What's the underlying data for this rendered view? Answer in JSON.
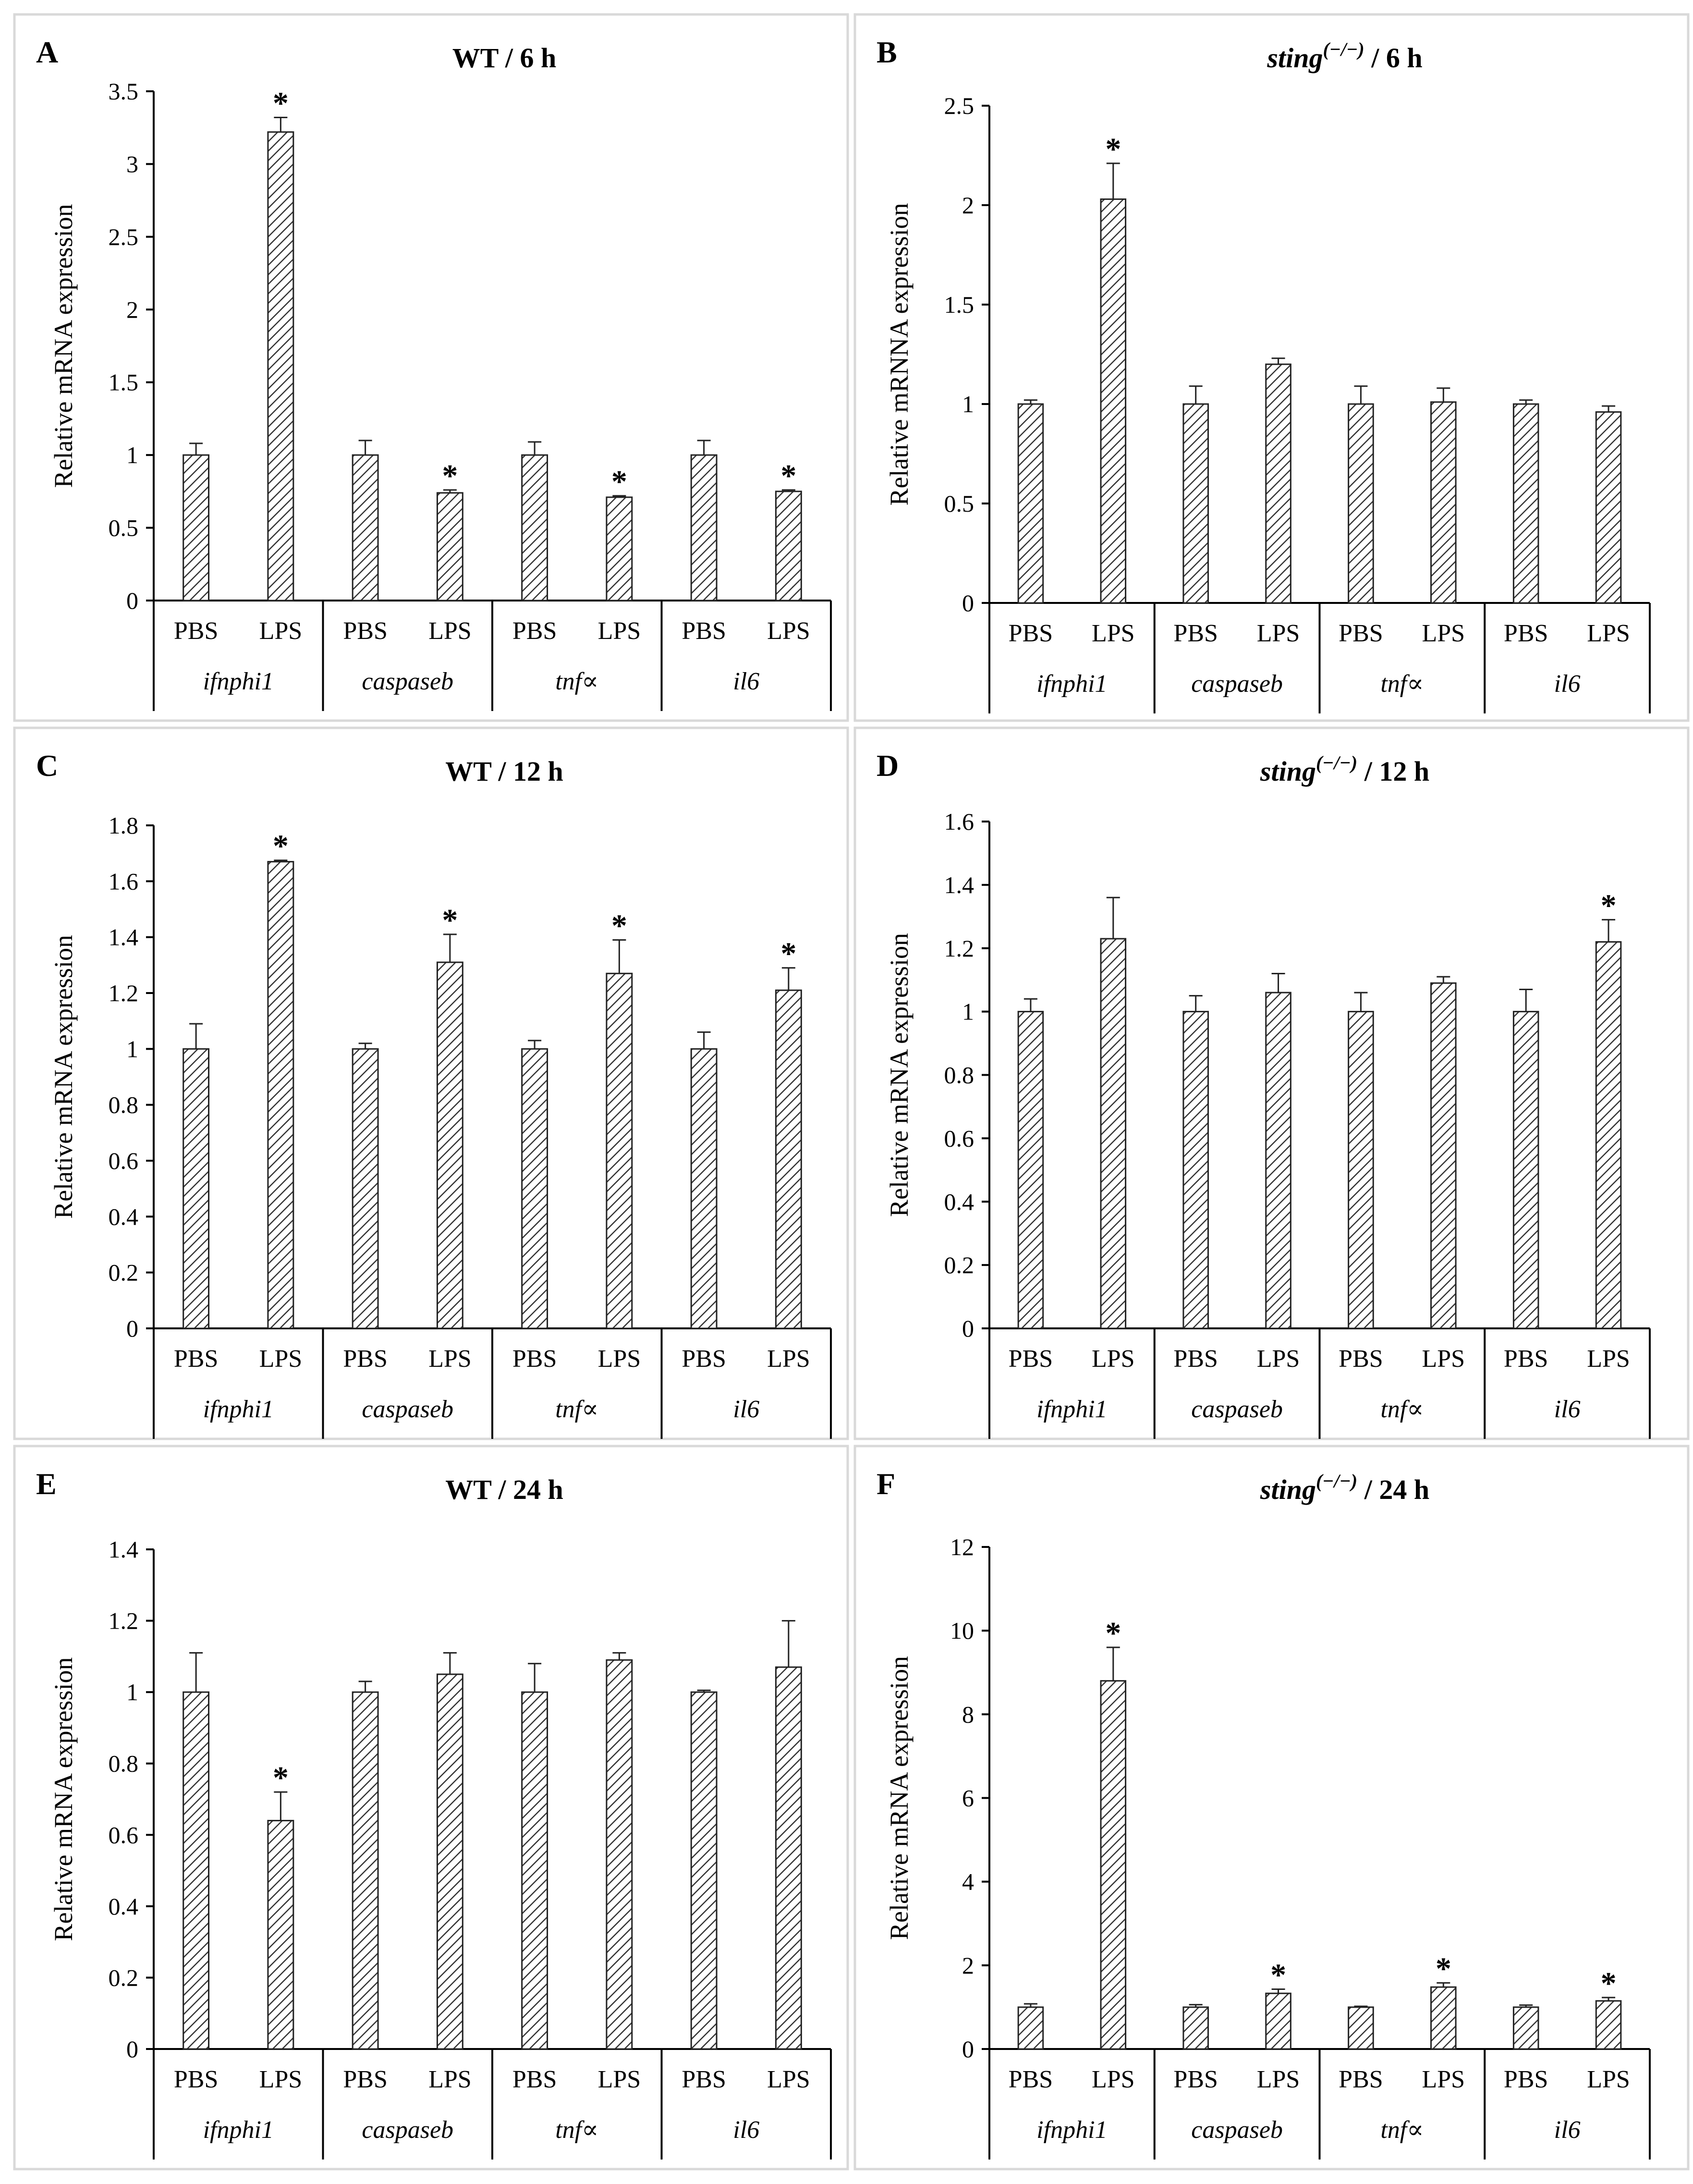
{
  "chart_data": [
    {
      "panel": "A",
      "type": "bar",
      "title": "WT / 6 h",
      "title_parts": {
        "genotype": "WT",
        "genotype_italic": false,
        "superscript": "",
        "time": "/ 6 h"
      },
      "ylabel": "Relative mRNA expression",
      "ylim": [
        0,
        3.5
      ],
      "yticks": [
        "0",
        "0.5",
        "1",
        "1.5",
        "2",
        "2.5",
        "3",
        "3.5"
      ],
      "groups": [
        "ifnphi1",
        "caspaseb",
        "tnf∝",
        "il6"
      ],
      "treatments": [
        "PBS",
        "LPS"
      ],
      "bars": [
        {
          "group": "ifnphi1",
          "treatment": "PBS",
          "value": 1.0,
          "error": 0.08,
          "significant": false
        },
        {
          "group": "ifnphi1",
          "treatment": "LPS",
          "value": 3.22,
          "error": 0.1,
          "significant": true
        },
        {
          "group": "caspaseb",
          "treatment": "PBS",
          "value": 1.0,
          "error": 0.1,
          "significant": false
        },
        {
          "group": "caspaseb",
          "treatment": "LPS",
          "value": 0.74,
          "error": 0.02,
          "significant": true
        },
        {
          "group": "tnf∝",
          "treatment": "PBS",
          "value": 1.0,
          "error": 0.09,
          "significant": false
        },
        {
          "group": "tnf∝",
          "treatment": "LPS",
          "value": 0.71,
          "error": 0.01,
          "significant": true
        },
        {
          "group": "il6",
          "treatment": "PBS",
          "value": 1.0,
          "error": 0.1,
          "significant": false
        },
        {
          "group": "il6",
          "treatment": "LPS",
          "value": 0.75,
          "error": 0.01,
          "significant": true
        }
      ]
    },
    {
      "panel": "B",
      "type": "bar",
      "title": "sting(−/−) / 6 h",
      "title_parts": {
        "genotype": "sting",
        "genotype_italic": true,
        "superscript": "(−/−)",
        "time": "/ 6 h"
      },
      "ylabel": "Relative mRNNA expression",
      "ylim": [
        0,
        2.5
      ],
      "yticks": [
        "0",
        "0.5",
        "1",
        "1.5",
        "2",
        "2.5"
      ],
      "groups": [
        "ifnphi1",
        "caspaseb",
        "tnf∝",
        "il6"
      ],
      "treatments": [
        "PBS",
        "LPS"
      ],
      "bars": [
        {
          "group": "ifnphi1",
          "treatment": "PBS",
          "value": 1.0,
          "error": 0.02,
          "significant": false
        },
        {
          "group": "ifnphi1",
          "treatment": "LPS",
          "value": 2.03,
          "error": 0.18,
          "significant": true
        },
        {
          "group": "caspaseb",
          "treatment": "PBS",
          "value": 1.0,
          "error": 0.09,
          "significant": false
        },
        {
          "group": "caspaseb",
          "treatment": "LPS",
          "value": 1.2,
          "error": 0.03,
          "significant": false
        },
        {
          "group": "tnf∝",
          "treatment": "PBS",
          "value": 1.0,
          "error": 0.09,
          "significant": false
        },
        {
          "group": "tnf∝",
          "treatment": "LPS",
          "value": 1.01,
          "error": 0.07,
          "significant": false
        },
        {
          "group": "il6",
          "treatment": "PBS",
          "value": 1.0,
          "error": 0.02,
          "significant": false
        },
        {
          "group": "il6",
          "treatment": "LPS",
          "value": 0.96,
          "error": 0.03,
          "significant": false
        }
      ]
    },
    {
      "panel": "C",
      "type": "bar",
      "title": "WT / 12 h",
      "title_parts": {
        "genotype": "WT",
        "genotype_italic": false,
        "superscript": "",
        "time": "/ 12 h"
      },
      "ylabel": "Relative mRNA expression",
      "ylim": [
        0,
        1.8
      ],
      "yticks": [
        "0",
        "0.2",
        "0.4",
        "0.6",
        "0.8",
        "1",
        "1.2",
        "1.4",
        "1.6",
        "1.8"
      ],
      "groups": [
        "ifnphi1",
        "caspaseb",
        "tnf∝",
        "il6"
      ],
      "treatments": [
        "PBS",
        "LPS"
      ],
      "bars": [
        {
          "group": "ifnphi1",
          "treatment": "PBS",
          "value": 1.0,
          "error": 0.09,
          "significant": false
        },
        {
          "group": "ifnphi1",
          "treatment": "LPS",
          "value": 1.67,
          "error": 0.005,
          "significant": true
        },
        {
          "group": "caspaseb",
          "treatment": "PBS",
          "value": 1.0,
          "error": 0.02,
          "significant": false
        },
        {
          "group": "caspaseb",
          "treatment": "LPS",
          "value": 1.31,
          "error": 0.1,
          "significant": true
        },
        {
          "group": "tnf∝",
          "treatment": "PBS",
          "value": 1.0,
          "error": 0.03,
          "significant": false
        },
        {
          "group": "tnf∝",
          "treatment": "LPS",
          "value": 1.27,
          "error": 0.12,
          "significant": true
        },
        {
          "group": "il6",
          "treatment": "PBS",
          "value": 1.0,
          "error": 0.06,
          "significant": false
        },
        {
          "group": "il6",
          "treatment": "LPS",
          "value": 1.21,
          "error": 0.08,
          "significant": true
        }
      ]
    },
    {
      "panel": "D",
      "type": "bar",
      "title": "sting(−/−) / 12 h",
      "title_parts": {
        "genotype": "sting",
        "genotype_italic": true,
        "superscript": "(−/−)",
        "time": "/ 12 h"
      },
      "ylabel": "Relative mRNA expression",
      "ylim": [
        0,
        1.6
      ],
      "yticks": [
        "0",
        "0.2",
        "0.4",
        "0.6",
        "0.8",
        "1",
        "1.2",
        "1.4",
        "1.6"
      ],
      "groups": [
        "ifnphi1",
        "caspaseb",
        "tnf∝",
        "il6"
      ],
      "treatments": [
        "PBS",
        "LPS"
      ],
      "bars": [
        {
          "group": "ifnphi1",
          "treatment": "PBS",
          "value": 1.0,
          "error": 0.04,
          "significant": false
        },
        {
          "group": "ifnphi1",
          "treatment": "LPS",
          "value": 1.23,
          "error": 0.13,
          "significant": false
        },
        {
          "group": "caspaseb",
          "treatment": "PBS",
          "value": 1.0,
          "error": 0.05,
          "significant": false
        },
        {
          "group": "caspaseb",
          "treatment": "LPS",
          "value": 1.06,
          "error": 0.06,
          "significant": false
        },
        {
          "group": "tnf∝",
          "treatment": "PBS",
          "value": 1.0,
          "error": 0.06,
          "significant": false
        },
        {
          "group": "tnf∝",
          "treatment": "LPS",
          "value": 1.09,
          "error": 0.02,
          "significant": false
        },
        {
          "group": "il6",
          "treatment": "PBS",
          "value": 1.0,
          "error": 0.07,
          "significant": false
        },
        {
          "group": "il6",
          "treatment": "LPS",
          "value": 1.22,
          "error": 0.07,
          "significant": true
        }
      ]
    },
    {
      "panel": "E",
      "type": "bar",
      "title": "WT / 24 h",
      "title_parts": {
        "genotype": "WT",
        "genotype_italic": false,
        "superscript": "",
        "time": "/ 24 h"
      },
      "ylabel": "Relative mRNA expression",
      "ylim": [
        0,
        1.4
      ],
      "yticks": [
        "0",
        "0.2",
        "0.4",
        "0.6",
        "0.8",
        "1",
        "1.2",
        "1.4"
      ],
      "groups": [
        "ifnphi1",
        "caspaseb",
        "tnf∝",
        "il6"
      ],
      "treatments": [
        "PBS",
        "LPS"
      ],
      "bars": [
        {
          "group": "ifnphi1",
          "treatment": "PBS",
          "value": 1.0,
          "error": 0.11,
          "significant": false
        },
        {
          "group": "ifnphi1",
          "treatment": "LPS",
          "value": 0.64,
          "error": 0.08,
          "significant": true
        },
        {
          "group": "caspaseb",
          "treatment": "PBS",
          "value": 1.0,
          "error": 0.03,
          "significant": false
        },
        {
          "group": "caspaseb",
          "treatment": "LPS",
          "value": 1.05,
          "error": 0.06,
          "significant": false
        },
        {
          "group": "tnf∝",
          "treatment": "PBS",
          "value": 1.0,
          "error": 0.08,
          "significant": false
        },
        {
          "group": "tnf∝",
          "treatment": "LPS",
          "value": 1.09,
          "error": 0.02,
          "significant": false
        },
        {
          "group": "il6",
          "treatment": "PBS",
          "value": 1.0,
          "error": 0.005,
          "significant": false
        },
        {
          "group": "il6",
          "treatment": "LPS",
          "value": 1.07,
          "error": 0.13,
          "significant": false
        }
      ]
    },
    {
      "panel": "F",
      "type": "bar",
      "title": "sting(−/−) / 24 h",
      "title_parts": {
        "genotype": "sting",
        "genotype_italic": true,
        "superscript": "(−/−)",
        "time": "/ 24 h"
      },
      "ylabel": "Relative mRNA expression",
      "ylim": [
        0,
        12
      ],
      "yticks": [
        "0",
        "2",
        "4",
        "6",
        "8",
        "10",
        "12"
      ],
      "groups": [
        "ifnphi1",
        "caspaseb",
        "tnf∝",
        "il6"
      ],
      "treatments": [
        "PBS",
        "LPS"
      ],
      "bars": [
        {
          "group": "ifnphi1",
          "treatment": "PBS",
          "value": 1.0,
          "error": 0.08,
          "significant": false
        },
        {
          "group": "ifnphi1",
          "treatment": "LPS",
          "value": 8.8,
          "error": 0.8,
          "significant": true
        },
        {
          "group": "caspaseb",
          "treatment": "PBS",
          "value": 1.0,
          "error": 0.06,
          "significant": false
        },
        {
          "group": "caspaseb",
          "treatment": "LPS",
          "value": 1.33,
          "error": 0.1,
          "significant": true
        },
        {
          "group": "tnf∝",
          "treatment": "PBS",
          "value": 1.0,
          "error": 0.02,
          "significant": false
        },
        {
          "group": "tnf∝",
          "treatment": "LPS",
          "value": 1.48,
          "error": 0.1,
          "significant": true
        },
        {
          "group": "il6",
          "treatment": "PBS",
          "value": 1.0,
          "error": 0.05,
          "significant": false
        },
        {
          "group": "il6",
          "treatment": "LPS",
          "value": 1.15,
          "error": 0.08,
          "significant": true
        }
      ]
    }
  ],
  "significance_marker": "*",
  "colors": {
    "bar_hatch": "#333333",
    "bar_fill": "#ffffff",
    "axis": "#000000",
    "panel_border": "#d9d9d9"
  }
}
